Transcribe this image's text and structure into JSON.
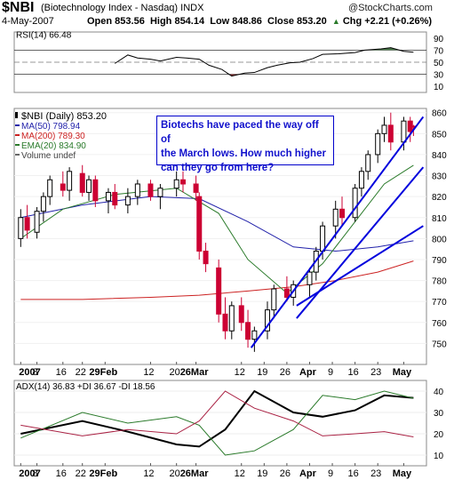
{
  "header": {
    "symbol": "$NBI",
    "name": "(Biotechnology Index - Nasdaq)",
    "exchange": "INDX",
    "date": "4-May-2007",
    "open": "Open 853.56",
    "high": "High 854.14",
    "low": "Low 848.86",
    "close": "Close 853.20",
    "change": "Chg +2.21 (+0.26%)",
    "change_arrow": "▲",
    "watermark": "@StockCharts.com"
  },
  "colors": {
    "price_up": "#000000",
    "price_down": "#cc0033",
    "ma50": "#2222aa",
    "ma200": "#cc2222",
    "ema20": "#2a7a2a",
    "trendline": "#0000dd",
    "rsi_fill_high": "#4a7a4a",
    "rsi_fill_low": "#8a3030",
    "adx": "#000000",
    "plus_di": "#2a7a2a",
    "minus_di": "#aa2244"
  },
  "annotation": {
    "text_line1": "Biotechs have paced the way off of",
    "text_line2": "the March lows.  How much higher",
    "text_line3": "can they go from here?"
  },
  "chart_data": [
    {
      "type": "line",
      "panel": "rsi",
      "title": "RSI(14) 66.48",
      "ylim": [
        0,
        100
      ],
      "yticks": [
        10,
        30,
        50,
        70,
        90
      ],
      "reference_lines": [
        30,
        50,
        70
      ],
      "series": [
        {
          "name": "RSI(14)",
          "x": [
            "2007-02-01",
            "2007-02-05",
            "2007-02-08",
            "2007-02-12",
            "2007-02-15",
            "2007-02-20",
            "2007-02-23",
            "2007-02-27",
            "2007-03-02",
            "2007-03-06",
            "2007-03-09",
            "2007-03-13",
            "2007-03-16",
            "2007-03-20",
            "2007-03-23",
            "2007-03-27",
            "2007-03-30",
            "2007-04-03",
            "2007-04-06",
            "2007-04-11",
            "2007-04-16",
            "2007-04-19",
            "2007-04-24",
            "2007-04-27",
            "2007-05-01",
            "2007-05-04"
          ],
          "values": [
            48,
            62,
            57,
            55,
            52,
            58,
            57,
            55,
            45,
            38,
            27,
            32,
            33,
            41,
            45,
            49,
            50,
            56,
            63,
            64,
            66,
            70,
            72,
            74,
            68,
            66.48
          ]
        }
      ]
    },
    {
      "type": "candlestick",
      "panel": "price",
      "title": "$NBI (Daily) 853.20",
      "ylim": [
        740,
        862
      ],
      "yticks": [
        750,
        760,
        770,
        780,
        790,
        800,
        810,
        820,
        830,
        840,
        850,
        860
      ],
      "x_tick_labels": [
        "2007",
        "8",
        "16",
        "22",
        "29Feb",
        "12",
        "20",
        "26Mar",
        "12",
        "19",
        "26",
        "Apr",
        "9",
        "16",
        "23",
        "May"
      ],
      "legend": [
        {
          "label": "$NBI (Daily) 853.20"
        },
        {
          "label": "MA(50) 798.94"
        },
        {
          "label": "MA(200) 789.30"
        },
        {
          "label": "EMA(20) 834.90"
        },
        {
          "label": "Volume undef"
        }
      ],
      "candles": [
        {
          "d": "2007-01-03",
          "o": 800,
          "h": 814,
          "l": 796,
          "c": 810
        },
        {
          "d": "2007-01-05",
          "o": 810,
          "h": 816,
          "l": 800,
          "c": 804
        },
        {
          "d": "2007-01-08",
          "o": 803,
          "h": 815,
          "l": 800,
          "c": 813
        },
        {
          "d": "2007-01-10",
          "o": 813,
          "h": 822,
          "l": 808,
          "c": 820
        },
        {
          "d": "2007-01-12",
          "o": 820,
          "h": 830,
          "l": 816,
          "c": 828
        },
        {
          "d": "2007-01-16",
          "o": 826,
          "h": 832,
          "l": 820,
          "c": 823
        },
        {
          "d": "2007-01-18",
          "o": 823,
          "h": 834,
          "l": 818,
          "c": 832
        },
        {
          "d": "2007-01-22",
          "o": 831,
          "h": 835,
          "l": 820,
          "c": 822
        },
        {
          "d": "2007-01-24",
          "o": 822,
          "h": 830,
          "l": 818,
          "c": 828
        },
        {
          "d": "2007-01-26",
          "o": 828,
          "h": 830,
          "l": 815,
          "c": 818
        },
        {
          "d": "2007-01-30",
          "o": 818,
          "h": 824,
          "l": 812,
          "c": 822
        },
        {
          "d": "2007-02-01",
          "o": 822,
          "h": 826,
          "l": 814,
          "c": 816
        },
        {
          "d": "2007-02-05",
          "o": 816,
          "h": 824,
          "l": 812,
          "c": 820
        },
        {
          "d": "2007-02-08",
          "o": 820,
          "h": 828,
          "l": 816,
          "c": 826
        },
        {
          "d": "2007-02-12",
          "o": 826,
          "h": 828,
          "l": 818,
          "c": 820
        },
        {
          "d": "2007-02-15",
          "o": 820,
          "h": 826,
          "l": 814,
          "c": 824
        },
        {
          "d": "2007-02-20",
          "o": 824,
          "h": 832,
          "l": 820,
          "c": 828
        },
        {
          "d": "2007-02-22",
          "o": 828,
          "h": 832,
          "l": 822,
          "c": 826
        },
        {
          "d": "2007-02-26",
          "o": 826,
          "h": 830,
          "l": 818,
          "c": 822
        },
        {
          "d": "2007-02-27",
          "o": 820,
          "h": 822,
          "l": 790,
          "c": 794
        },
        {
          "d": "2007-03-01",
          "o": 794,
          "h": 798,
          "l": 784,
          "c": 788
        },
        {
          "d": "2007-03-05",
          "o": 786,
          "h": 790,
          "l": 760,
          "c": 764
        },
        {
          "d": "2007-03-07",
          "o": 764,
          "h": 772,
          "l": 752,
          "c": 756
        },
        {
          "d": "2007-03-09",
          "o": 756,
          "h": 770,
          "l": 752,
          "c": 768
        },
        {
          "d": "2007-03-12",
          "o": 768,
          "h": 772,
          "l": 756,
          "c": 760
        },
        {
          "d": "2007-03-14",
          "o": 760,
          "h": 766,
          "l": 748,
          "c": 752
        },
        {
          "d": "2007-03-16",
          "o": 752,
          "h": 758,
          "l": 746,
          "c": 756
        },
        {
          "d": "2007-03-20",
          "o": 756,
          "h": 770,
          "l": 752,
          "c": 766
        },
        {
          "d": "2007-03-22",
          "o": 766,
          "h": 778,
          "l": 762,
          "c": 776
        },
        {
          "d": "2007-03-26",
          "o": 776,
          "h": 782,
          "l": 770,
          "c": 772
        },
        {
          "d": "2007-03-28",
          "o": 772,
          "h": 780,
          "l": 768,
          "c": 778
        },
        {
          "d": "2007-04-02",
          "o": 778,
          "h": 786,
          "l": 772,
          "c": 784
        },
        {
          "d": "2007-04-04",
          "o": 784,
          "h": 796,
          "l": 780,
          "c": 794
        },
        {
          "d": "2007-04-06",
          "o": 794,
          "h": 808,
          "l": 790,
          "c": 806
        },
        {
          "d": "2007-04-10",
          "o": 806,
          "h": 818,
          "l": 800,
          "c": 814
        },
        {
          "d": "2007-04-12",
          "o": 814,
          "h": 820,
          "l": 806,
          "c": 810
        },
        {
          "d": "2007-04-16",
          "o": 810,
          "h": 826,
          "l": 808,
          "c": 824
        },
        {
          "d": "2007-04-18",
          "o": 824,
          "h": 834,
          "l": 820,
          "c": 832
        },
        {
          "d": "2007-04-20",
          "o": 832,
          "h": 842,
          "l": 828,
          "c": 840
        },
        {
          "d": "2007-04-23",
          "o": 840,
          "h": 852,
          "l": 836,
          "c": 850
        },
        {
          "d": "2007-04-25",
          "o": 850,
          "h": 858,
          "l": 846,
          "c": 854
        },
        {
          "d": "2007-04-27",
          "o": 854,
          "h": 860,
          "l": 842,
          "c": 846
        },
        {
          "d": "2007-05-01",
          "o": 846,
          "h": 858,
          "l": 842,
          "c": 856
        },
        {
          "d": "2007-05-03",
          "o": 856,
          "h": 858,
          "l": 846,
          "c": 851
        },
        {
          "d": "2007-05-04",
          "o": 853.56,
          "h": 854.14,
          "l": 848.86,
          "c": 853.2
        }
      ],
      "series": [
        {
          "name": "MA(50)",
          "x": [
            "2007-01-03",
            "2007-01-22",
            "2007-02-12",
            "2007-02-27",
            "2007-03-14",
            "2007-03-28",
            "2007-04-10",
            "2007-04-23",
            "2007-05-04"
          ],
          "values": [
            810,
            816,
            820,
            819,
            808,
            796,
            794,
            796,
            798.94
          ]
        },
        {
          "name": "MA(200)",
          "x": [
            "2007-01-03",
            "2007-01-22",
            "2007-02-12",
            "2007-02-27",
            "2007-03-14",
            "2007-03-28",
            "2007-04-10",
            "2007-04-23",
            "2007-05-04"
          ],
          "values": [
            771,
            771,
            772,
            773,
            775,
            777,
            780,
            784,
            789.3
          ]
        },
        {
          "name": "EMA(20)",
          "x": [
            "2007-01-03",
            "2007-01-16",
            "2007-02-01",
            "2007-02-20",
            "2007-03-05",
            "2007-03-14",
            "2007-03-26",
            "2007-04-06",
            "2007-04-16",
            "2007-04-25",
            "2007-05-04"
          ],
          "values": [
            800,
            814,
            821,
            824,
            812,
            790,
            774,
            788,
            808,
            826,
            834.9
          ]
        }
      ],
      "trendlines": [
        {
          "from": {
            "d": "2007-03-15",
            "v": 748
          },
          "to": {
            "d": "2007-05-07",
            "v": 858
          }
        },
        {
          "from": {
            "d": "2007-03-29",
            "v": 762
          },
          "to": {
            "d": "2007-05-07",
            "v": 834
          }
        },
        {
          "from": {
            "d": "2007-03-29",
            "v": 768
          },
          "to": {
            "d": "2007-05-07",
            "v": 806
          }
        }
      ]
    },
    {
      "type": "line",
      "panel": "adx",
      "title": "ADX(14) 36.83  +DI 36.67  -DI 18.56",
      "ylim": [
        5,
        45
      ],
      "yticks": [
        10,
        20,
        30,
        40
      ],
      "x_tick_labels": [
        "2007",
        "8",
        "16",
        "22",
        "29Feb",
        "12",
        "20",
        "26Mar",
        "12",
        "19",
        "26",
        "Apr",
        "9",
        "16",
        "23",
        "May"
      ],
      "series": [
        {
          "name": "ADX(14)",
          "x": [
            "2007-01-03",
            "2007-01-22",
            "2007-02-05",
            "2007-02-20",
            "2007-02-27",
            "2007-03-07",
            "2007-03-16",
            "2007-03-28",
            "2007-04-06",
            "2007-04-16",
            "2007-04-25",
            "2007-05-04"
          ],
          "values": [
            20,
            26,
            21,
            15,
            14,
            22,
            40,
            30,
            28,
            31,
            38,
            36.83
          ]
        },
        {
          "name": "+DI",
          "x": [
            "2007-01-03",
            "2007-01-22",
            "2007-02-05",
            "2007-02-20",
            "2007-02-27",
            "2007-03-07",
            "2007-03-16",
            "2007-03-28",
            "2007-04-06",
            "2007-04-16",
            "2007-04-25",
            "2007-05-04"
          ],
          "values": [
            18,
            30,
            25,
            28,
            24,
            10,
            12,
            22,
            38,
            36,
            40,
            36.67
          ]
        },
        {
          "name": "-DI",
          "x": [
            "2007-01-03",
            "2007-01-22",
            "2007-02-05",
            "2007-02-20",
            "2007-02-27",
            "2007-03-07",
            "2007-03-16",
            "2007-03-28",
            "2007-04-06",
            "2007-04-16",
            "2007-04-25",
            "2007-05-04"
          ],
          "values": [
            24,
            19,
            22,
            20,
            26,
            40,
            32,
            26,
            19,
            20,
            21,
            18.56
          ]
        }
      ]
    }
  ]
}
